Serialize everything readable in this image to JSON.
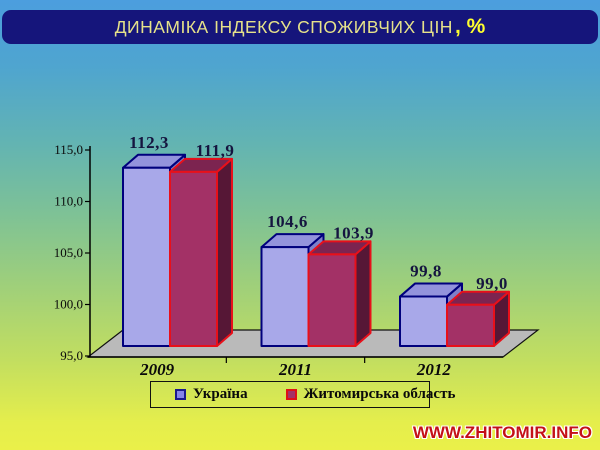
{
  "title": {
    "text": "ДИНАМІКА ІНДЕКСУ СПОЖИВЧИХ ЦІН",
    "suffix": ", %"
  },
  "watermark": "WWW.ZHITOMIR.INFO",
  "colors": {
    "title_bar": "#15157b",
    "title_text": "#e6e28a",
    "title_suffix": "#ffff2e",
    "background_top": "#4c9ede",
    "background_bottom": "#eaf049",
    "floor": "#bababa",
    "watermark_text": "#c41017"
  },
  "chart_data": {
    "type": "bar",
    "style": "3d-clustered-column",
    "title": "ДИНАМІКА ІНДЕКСУ СПОЖИВЧИХ ЦІН, %",
    "categories": [
      "2009",
      "2011",
      "2012"
    ],
    "series": [
      {
        "key": "ukraine",
        "name": "Україна",
        "values": [
          112.3,
          104.6,
          99.8
        ],
        "labels": [
          "112,3",
          "104,6",
          "99,8"
        ],
        "front_color": "#a8a8e9",
        "top_color": "#9393dc",
        "side_color": "#7f7fc8",
        "border_color": "#00007d"
      },
      {
        "key": "zhytomyr",
        "name": "Житомирська область",
        "values": [
          111.9,
          103.9,
          99.0
        ],
        "labels": [
          "111,9",
          "103,9",
          "99,0"
        ],
        "front_color": "#a33166",
        "top_color": "#7c2450",
        "side_color": "#561736",
        "border_color": "#e8101a"
      }
    ],
    "ylim": [
      95,
      115
    ],
    "ytick_step": 5,
    "yticks": [
      "115,0",
      "110,0",
      "105,0",
      "100,0",
      "95,0"
    ],
    "xlabel": "",
    "ylabel": "",
    "grid": false,
    "legend_position": "bottom",
    "value_label_color": "#15153f",
    "axis_label_color": "#0a0a0a"
  }
}
